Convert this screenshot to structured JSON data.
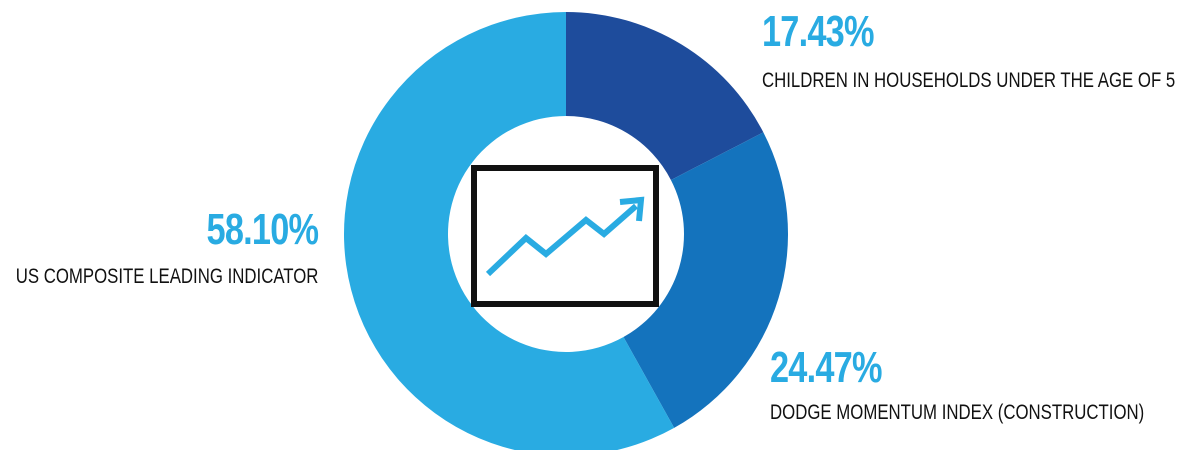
{
  "chart_data": {
    "type": "pie",
    "subtype": "donut",
    "slices": [
      {
        "name": "CHILDREN IN HOUSEHOLDS UNDER THE AGE OF 5",
        "value": 17.43,
        "value_label": "17.43%",
        "color": "#1e4c9c"
      },
      {
        "name": "DODGE MOMENTUM INDEX (CONSTRUCTION)",
        "value": 24.47,
        "value_label": "24.47%",
        "color": "#1473bd"
      },
      {
        "name": "US COMPOSITE LEADING INDICATOR",
        "value": 58.1,
        "value_label": "58.10%",
        "color": "#29abe2"
      }
    ],
    "start": "12 o'clock",
    "direction": "clockwise",
    "center_icon": "line-chart-trending-up-icon",
    "label_color": "#29abe2",
    "text_color": "#111111"
  }
}
